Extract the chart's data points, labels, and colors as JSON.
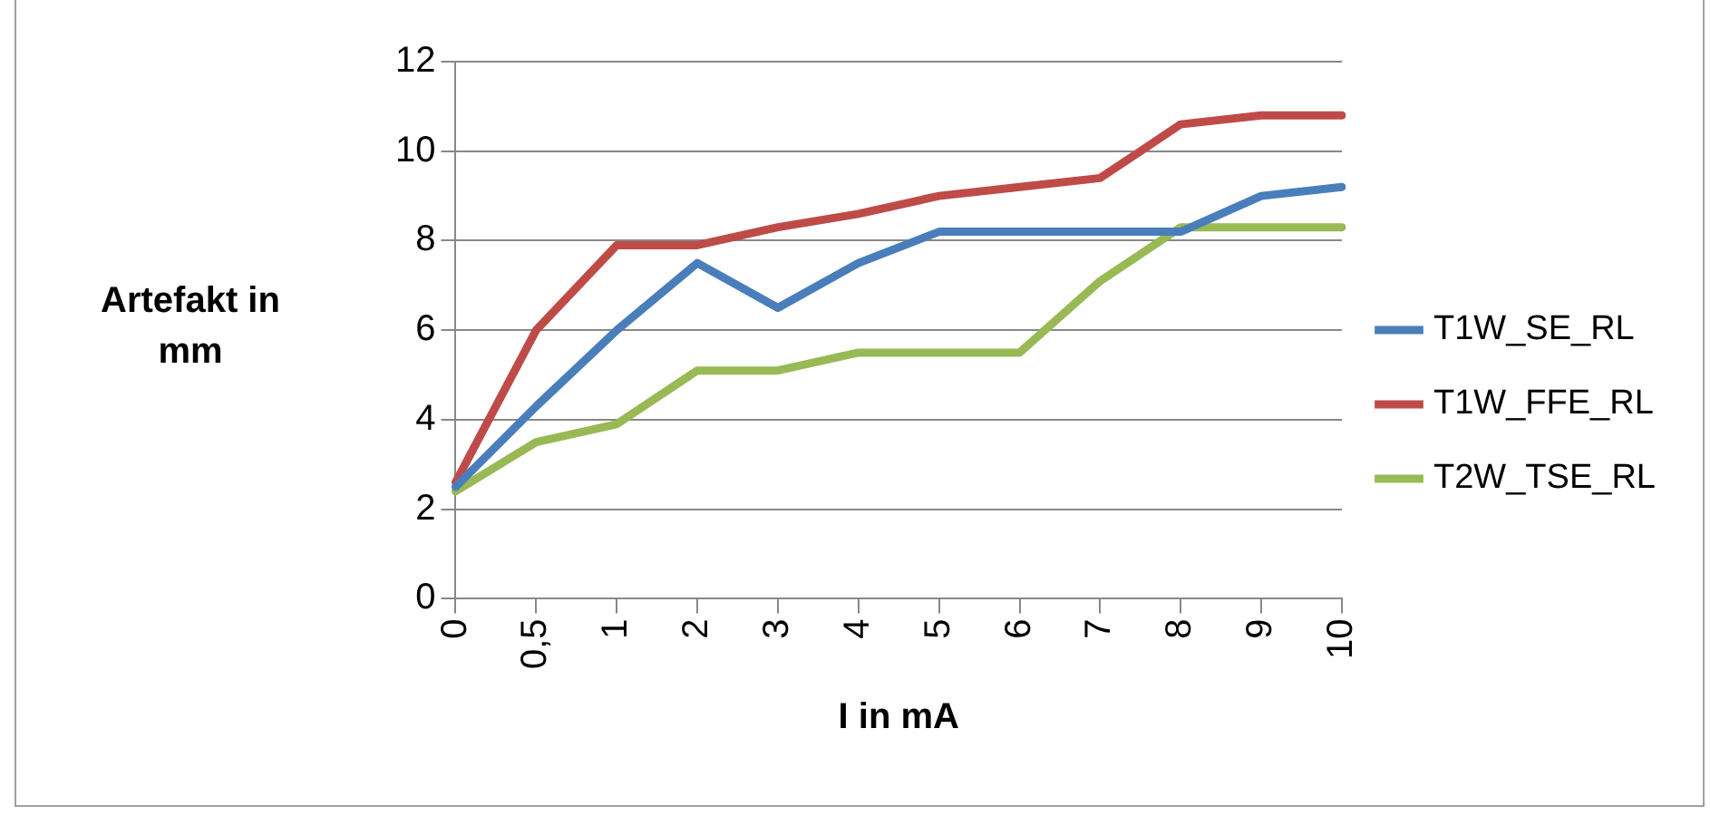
{
  "chart_data": {
    "type": "line",
    "xlabel": "I in mA",
    "ylabel": "Artefakt in mm",
    "categories": [
      "0",
      "0,5",
      "1",
      "2",
      "3",
      "4",
      "5",
      "6",
      "7",
      "8",
      "9",
      "10"
    ],
    "series": [
      {
        "name": "T1W_SE_RL",
        "color": "#4a7ebb",
        "values": [
          2.5,
          4.3,
          6.0,
          7.5,
          6.5,
          7.5,
          8.2,
          8.2,
          8.2,
          8.2,
          9.0,
          9.2
        ]
      },
      {
        "name": "T1W_FFE_RL",
        "color": "#be4b48",
        "values": [
          2.6,
          6.0,
          7.9,
          7.9,
          8.3,
          8.6,
          9.0,
          9.2,
          9.4,
          10.6,
          10.8,
          10.8
        ]
      },
      {
        "name": "T2W_TSE_RL",
        "color": "#98b954",
        "values": [
          2.4,
          3.5,
          3.9,
          5.1,
          5.1,
          5.5,
          5.5,
          5.5,
          7.1,
          8.3,
          8.3,
          8.3
        ]
      }
    ],
    "ylim": [
      0,
      12
    ],
    "yticks": [
      0,
      2,
      4,
      6,
      8,
      10,
      12
    ],
    "grid": "y",
    "legend": "right",
    "marker": "none",
    "line_style": "solid"
  }
}
